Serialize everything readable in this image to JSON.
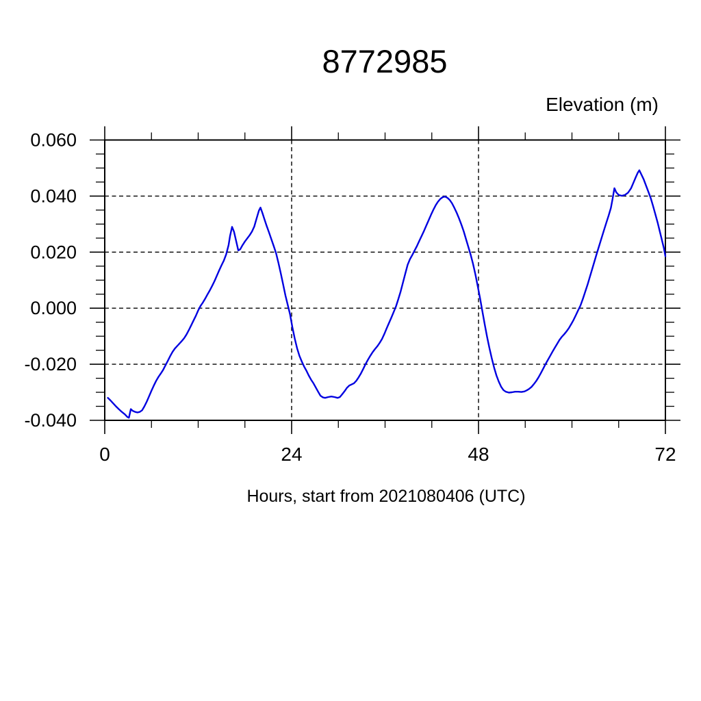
{
  "title": "8772985",
  "axes": {
    "y_title": "Elevation (m)",
    "x_title": "Hours, start from 2021080406 (UTC)"
  },
  "colors": {
    "line": "#0000e0",
    "axis": "#000000",
    "grid": "#000000",
    "background": "#ffffff",
    "text": "#000000"
  },
  "chart_data": {
    "type": "line",
    "title": "8772985",
    "xlabel": "Hours, start from 2021080406 (UTC)",
    "ylabel": "Elevation (m)",
    "xlim": [
      0,
      72
    ],
    "ylim": [
      -0.04,
      0.06
    ],
    "x_major_ticks": [
      0,
      24,
      48,
      72
    ],
    "x_tick_labels": [
      "0",
      "24",
      "48",
      "72"
    ],
    "x_minor_step": 6,
    "y_major_ticks": [
      -0.04,
      -0.02,
      0.0,
      0.02,
      0.04,
      0.06
    ],
    "y_tick_labels": [
      "-0.040",
      "-0.020",
      "0.000",
      "0.020",
      "0.040",
      "0.060"
    ],
    "y_minor_step": 0.005,
    "grid": true,
    "grid_style": "dashed",
    "legend": "none",
    "series": [
      {
        "name": "elevation",
        "color": "#0000e0",
        "points": [
          [
            0.4,
            -0.032
          ],
          [
            0.7,
            -0.0328
          ],
          [
            1.0,
            -0.0337
          ],
          [
            1.4,
            -0.0349
          ],
          [
            1.8,
            -0.036
          ],
          [
            2.2,
            -0.037
          ],
          [
            2.6,
            -0.0379
          ],
          [
            2.9,
            -0.0388
          ],
          [
            3.1,
            -0.0391
          ],
          [
            3.35,
            -0.036
          ],
          [
            3.6,
            -0.0366
          ],
          [
            3.9,
            -0.037
          ],
          [
            4.2,
            -0.0372
          ],
          [
            4.5,
            -0.037
          ],
          [
            4.8,
            -0.0364
          ],
          [
            5.1,
            -0.035
          ],
          [
            5.4,
            -0.0333
          ],
          [
            5.7,
            -0.0314
          ],
          [
            6.0,
            -0.0294
          ],
          [
            6.3,
            -0.0276
          ],
          [
            6.6,
            -0.0259
          ],
          [
            6.9,
            -0.0245
          ],
          [
            7.2,
            -0.0233
          ],
          [
            7.5,
            -0.022
          ],
          [
            7.8,
            -0.0204
          ],
          [
            8.1,
            -0.0188
          ],
          [
            8.4,
            -0.0171
          ],
          [
            8.7,
            -0.0156
          ],
          [
            9.0,
            -0.0144
          ],
          [
            9.3,
            -0.0135
          ],
          [
            9.6,
            -0.0126
          ],
          [
            9.9,
            -0.0117
          ],
          [
            10.2,
            -0.0107
          ],
          [
            10.5,
            -0.0094
          ],
          [
            10.8,
            -0.0078
          ],
          [
            11.1,
            -0.0061
          ],
          [
            11.4,
            -0.0044
          ],
          [
            11.7,
            -0.0027
          ],
          [
            12.0,
            -0.0008
          ],
          [
            12.3,
            0.0008
          ],
          [
            12.6,
            0.002
          ],
          [
            12.9,
            0.0034
          ],
          [
            13.2,
            0.0049
          ],
          [
            13.5,
            0.0064
          ],
          [
            13.8,
            0.008
          ],
          [
            14.1,
            0.0097
          ],
          [
            14.4,
            0.0116
          ],
          [
            14.7,
            0.0135
          ],
          [
            15.0,
            0.0153
          ],
          [
            15.3,
            0.017
          ],
          [
            15.6,
            0.0192
          ],
          [
            15.9,
            0.0225
          ],
          [
            16.1,
            0.0258
          ],
          [
            16.35,
            0.029
          ],
          [
            16.6,
            0.0273
          ],
          [
            16.9,
            0.0237
          ],
          [
            17.15,
            0.0206
          ],
          [
            17.4,
            0.021
          ],
          [
            17.7,
            0.0225
          ],
          [
            18.0,
            0.0238
          ],
          [
            18.3,
            0.0249
          ],
          [
            18.6,
            0.026
          ],
          [
            18.9,
            0.0273
          ],
          [
            19.2,
            0.0291
          ],
          [
            19.5,
            0.032
          ],
          [
            19.8,
            0.0348
          ],
          [
            20.0,
            0.0359
          ],
          [
            20.25,
            0.034
          ],
          [
            20.5,
            0.0318
          ],
          [
            20.8,
            0.0293
          ],
          [
            21.1,
            0.027
          ],
          [
            21.4,
            0.0246
          ],
          [
            21.7,
            0.0222
          ],
          [
            22.0,
            0.0196
          ],
          [
            22.3,
            0.0162
          ],
          [
            22.6,
            0.0125
          ],
          [
            22.9,
            0.0086
          ],
          [
            23.2,
            0.0046
          ],
          [
            23.5,
            0.0012
          ],
          [
            23.8,
            -0.0022
          ],
          [
            24.1,
            -0.0068
          ],
          [
            24.4,
            -0.0108
          ],
          [
            24.7,
            -0.0143
          ],
          [
            25.0,
            -0.017
          ],
          [
            25.3,
            -0.019
          ],
          [
            25.6,
            -0.0208
          ],
          [
            25.9,
            -0.0223
          ],
          [
            26.2,
            -0.024
          ],
          [
            26.5,
            -0.0255
          ],
          [
            26.8,
            -0.0268
          ],
          [
            27.1,
            -0.0283
          ],
          [
            27.4,
            -0.0298
          ],
          [
            27.7,
            -0.0312
          ],
          [
            28.0,
            -0.0318
          ],
          [
            28.3,
            -0.032
          ],
          [
            28.7,
            -0.0317
          ],
          [
            29.1,
            -0.0315
          ],
          [
            29.5,
            -0.0317
          ],
          [
            29.9,
            -0.032
          ],
          [
            30.2,
            -0.0317
          ],
          [
            30.5,
            -0.0307
          ],
          [
            30.8,
            -0.0296
          ],
          [
            31.1,
            -0.0284
          ],
          [
            31.4,
            -0.0276
          ],
          [
            31.7,
            -0.0272
          ],
          [
            32.0,
            -0.0268
          ],
          [
            32.3,
            -0.0259
          ],
          [
            32.6,
            -0.0247
          ],
          [
            32.9,
            -0.0233
          ],
          [
            33.2,
            -0.0216
          ],
          [
            33.5,
            -0.0199
          ],
          [
            33.8,
            -0.0184
          ],
          [
            34.1,
            -0.017
          ],
          [
            34.4,
            -0.0157
          ],
          [
            34.7,
            -0.0146
          ],
          [
            35.0,
            -0.0136
          ],
          [
            35.3,
            -0.0124
          ],
          [
            35.6,
            -0.011
          ],
          [
            35.9,
            -0.0092
          ],
          [
            36.2,
            -0.0072
          ],
          [
            36.5,
            -0.0053
          ],
          [
            36.8,
            -0.0034
          ],
          [
            37.1,
            -0.0014
          ],
          [
            37.4,
            0.0006
          ],
          [
            37.7,
            0.0032
          ],
          [
            38.0,
            0.006
          ],
          [
            38.3,
            0.0092
          ],
          [
            38.6,
            0.0124
          ],
          [
            38.9,
            0.0155
          ],
          [
            39.2,
            0.0175
          ],
          [
            39.5,
            0.019
          ],
          [
            39.8,
            0.0206
          ],
          [
            40.1,
            0.0222
          ],
          [
            40.4,
            0.024
          ],
          [
            40.7,
            0.0258
          ],
          [
            41.0,
            0.0276
          ],
          [
            41.3,
            0.0295
          ],
          [
            41.6,
            0.0314
          ],
          [
            41.9,
            0.0333
          ],
          [
            42.2,
            0.0351
          ],
          [
            42.5,
            0.0367
          ],
          [
            42.8,
            0.038
          ],
          [
            43.1,
            0.039
          ],
          [
            43.4,
            0.0396
          ],
          [
            43.7,
            0.0398
          ],
          [
            44.0,
            0.0394
          ],
          [
            44.3,
            0.0386
          ],
          [
            44.6,
            0.0374
          ],
          [
            44.9,
            0.0358
          ],
          [
            45.2,
            0.034
          ],
          [
            45.5,
            0.032
          ],
          [
            45.8,
            0.0298
          ],
          [
            46.1,
            0.0274
          ],
          [
            46.4,
            0.0246
          ],
          [
            46.7,
            0.0218
          ],
          [
            47.0,
            0.019
          ],
          [
            47.3,
            0.0158
          ],
          [
            47.6,
            0.012
          ],
          [
            47.9,
            0.0078
          ],
          [
            48.2,
            0.0035
          ],
          [
            48.5,
            -0.0012
          ],
          [
            48.8,
            -0.0058
          ],
          [
            49.1,
            -0.0102
          ],
          [
            49.4,
            -0.0142
          ],
          [
            49.7,
            -0.0178
          ],
          [
            50.0,
            -0.0212
          ],
          [
            50.3,
            -0.024
          ],
          [
            50.6,
            -0.0262
          ],
          [
            50.9,
            -0.028
          ],
          [
            51.2,
            -0.0292
          ],
          [
            51.5,
            -0.0298
          ],
          [
            51.9,
            -0.0301
          ],
          [
            52.3,
            -0.03
          ],
          [
            52.7,
            -0.0298
          ],
          [
            53.1,
            -0.0298
          ],
          [
            53.5,
            -0.0299
          ],
          [
            53.9,
            -0.0297
          ],
          [
            54.2,
            -0.0293
          ],
          [
            54.5,
            -0.0288
          ],
          [
            54.8,
            -0.0281
          ],
          [
            55.1,
            -0.0271
          ],
          [
            55.4,
            -0.026
          ],
          [
            55.7,
            -0.0247
          ],
          [
            56.0,
            -0.0232
          ],
          [
            56.3,
            -0.0216
          ],
          [
            56.6,
            -0.02
          ],
          [
            56.9,
            -0.0185
          ],
          [
            57.2,
            -0.017
          ],
          [
            57.5,
            -0.0155
          ],
          [
            57.8,
            -0.0141
          ],
          [
            58.1,
            -0.0127
          ],
          [
            58.4,
            -0.0113
          ],
          [
            58.7,
            -0.0102
          ],
          [
            59.0,
            -0.0093
          ],
          [
            59.3,
            -0.0083
          ],
          [
            59.6,
            -0.0071
          ],
          [
            59.9,
            -0.0057
          ],
          [
            60.2,
            -0.0042
          ],
          [
            60.5,
            -0.0025
          ],
          [
            60.8,
            -0.0007
          ],
          [
            61.1,
            0.001
          ],
          [
            61.4,
            0.0033
          ],
          [
            61.7,
            0.0058
          ],
          [
            62.0,
            0.0084
          ],
          [
            62.3,
            0.0112
          ],
          [
            62.6,
            0.014
          ],
          [
            62.9,
            0.0168
          ],
          [
            63.2,
            0.0196
          ],
          [
            63.5,
            0.0223
          ],
          [
            63.8,
            0.025
          ],
          [
            64.1,
            0.0277
          ],
          [
            64.4,
            0.0304
          ],
          [
            64.7,
            0.033
          ],
          [
            65.0,
            0.0358
          ],
          [
            65.2,
            0.0388
          ],
          [
            65.45,
            0.0428
          ],
          [
            65.7,
            0.0413
          ],
          [
            66.0,
            0.0404
          ],
          [
            66.4,
            0.0401
          ],
          [
            66.8,
            0.0404
          ],
          [
            67.2,
            0.0412
          ],
          [
            67.6,
            0.0428
          ],
          [
            67.9,
            0.0448
          ],
          [
            68.2,
            0.0468
          ],
          [
            68.45,
            0.0483
          ],
          [
            68.65,
            0.0492
          ],
          [
            68.9,
            0.0478
          ],
          [
            69.2,
            0.046
          ],
          [
            69.5,
            0.0438
          ],
          [
            69.8,
            0.0416
          ],
          [
            70.1,
            0.0394
          ],
          [
            70.4,
            0.0366
          ],
          [
            70.7,
            0.0336
          ],
          [
            71.0,
            0.0306
          ],
          [
            71.3,
            0.0272
          ],
          [
            71.6,
            0.0238
          ],
          [
            71.8,
            0.0215
          ],
          [
            72.0,
            0.0185
          ]
        ]
      }
    ]
  }
}
